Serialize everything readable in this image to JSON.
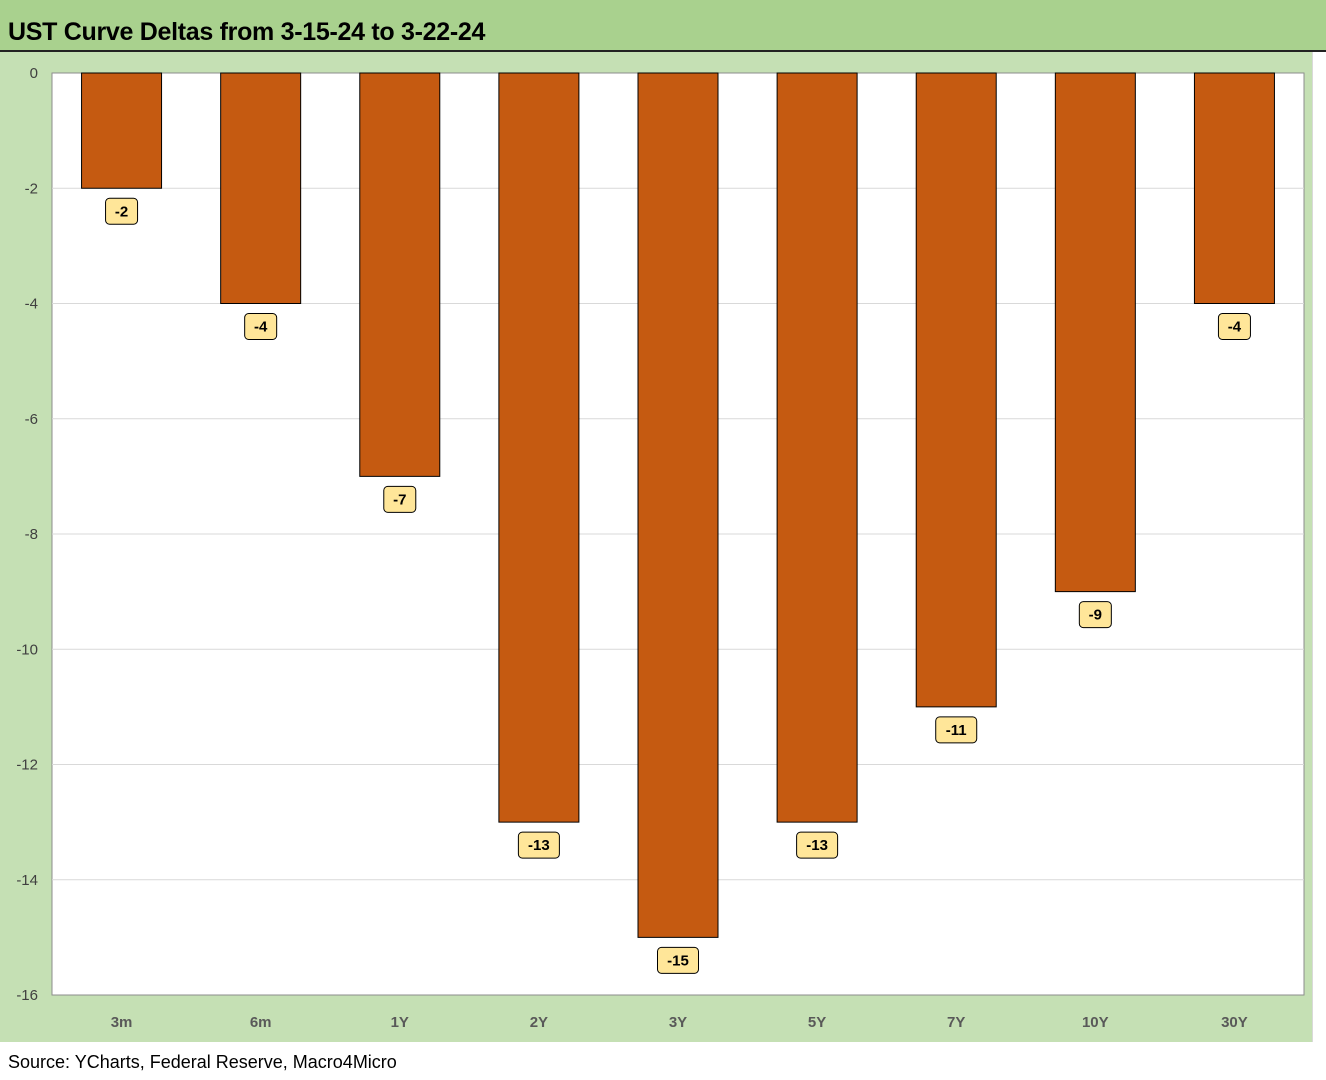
{
  "title": "UST Curve Deltas from 3-15-24 to 3-22-24",
  "source": "Source: YCharts, Federal Reserve, Macro4Micro",
  "colors": {
    "bar": "#c55a11",
    "label_bg": "#ffe699",
    "band": "#c5e0b4",
    "title_band": "#a9d18e"
  },
  "chart_data": {
    "type": "bar",
    "categories": [
      "3m",
      "6m",
      "1Y",
      "2Y",
      "3Y",
      "5Y",
      "7Y",
      "10Y",
      "30Y"
    ],
    "values": [
      -2,
      -4,
      -7,
      -13,
      -15,
      -13,
      -11,
      -9,
      -4
    ],
    "data_labels": [
      "-2",
      "-4",
      "-7",
      "-13",
      "-15",
      "-13",
      "-11",
      "-9",
      "-4"
    ],
    "ylim": [
      -16,
      0
    ],
    "yticks": [
      0,
      -2,
      -4,
      -6,
      -8,
      -10,
      -12,
      -14,
      -16
    ],
    "ytick_labels": [
      "0",
      "-2",
      "-4",
      "-6",
      "-8",
      "-10",
      "-12",
      "-14",
      "-16"
    ],
    "grid": true,
    "legend": "none"
  }
}
